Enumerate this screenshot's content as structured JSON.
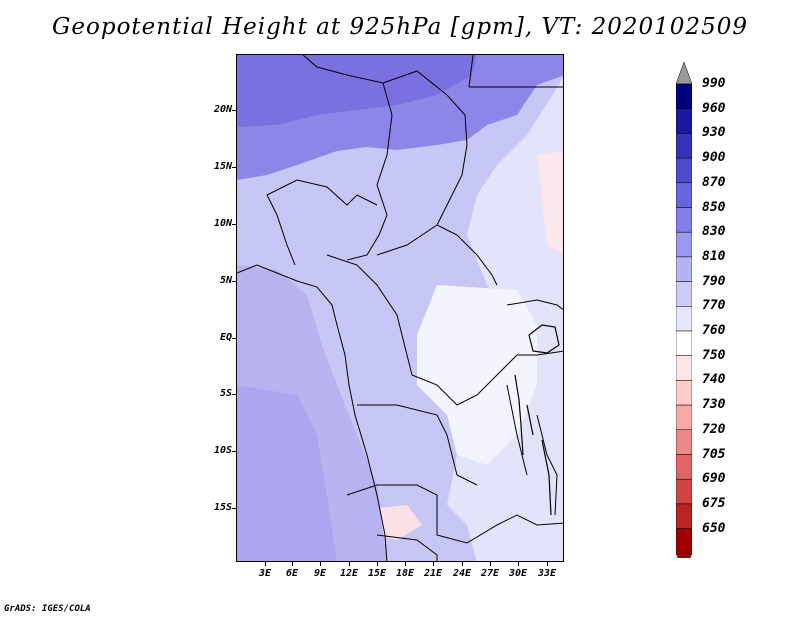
{
  "title": "Geopotential Height at 925hPa [gpm], VT: 2020102509",
  "credit": "GrADS: IGES/COLA",
  "map": {
    "lat_labels": [
      "20N",
      "15N",
      "10N",
      "5N",
      "EQ",
      "5S",
      "10S",
      "15S"
    ],
    "lon_labels": [
      "3E",
      "6E",
      "9E",
      "12E",
      "15E",
      "18E",
      "21E",
      "24E",
      "27E",
      "30E",
      "33E"
    ]
  },
  "colorbar": {
    "levels": [
      "990",
      "960",
      "930",
      "900",
      "870",
      "850",
      "830",
      "810",
      "790",
      "770",
      "760",
      "750",
      "740",
      "730",
      "720",
      "705",
      "690",
      "675",
      "650"
    ],
    "colors": [
      "#00007f",
      "#1a1a9f",
      "#3333b8",
      "#4d4dcc",
      "#6666dd",
      "#7f7fe6",
      "#9999ee",
      "#b3b3f4",
      "#ccccf8",
      "#e6e6fc",
      "#ffffff",
      "#ffe6e6",
      "#ffcccc",
      "#f4a8a8",
      "#ee8888",
      "#e06666",
      "#d14444",
      "#bb2222",
      "#a00000"
    ]
  }
}
